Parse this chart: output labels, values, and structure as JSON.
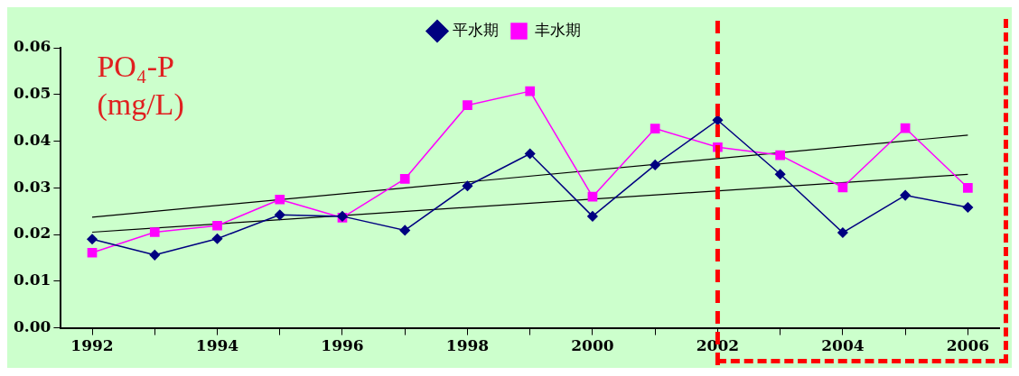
{
  "chart_data": {
    "type": "line",
    "ylabel": "PO₄-P (mg/L)",
    "categories": [
      "1992",
      null,
      "1994",
      null,
      "1996",
      null,
      "1998",
      null,
      "2000",
      null,
      "2002",
      null,
      "2004",
      null,
      "2006"
    ],
    "series": [
      {
        "name": "平水期",
        "color": "#000080",
        "marker": "diamond",
        "values": [
          0.019,
          0.0156,
          0.0191,
          0.0242,
          0.0239,
          0.0209,
          0.0304,
          0.0373,
          0.0239,
          0.0349,
          0.0445,
          0.0329,
          0.0204,
          0.0284,
          0.0258
        ]
      },
      {
        "name": "丰水期",
        "color": "#ff00ff",
        "marker": "square",
        "values": [
          0.0161,
          0.0205,
          0.0219,
          0.0275,
          0.0236,
          0.0319,
          0.0477,
          0.0507,
          0.0281,
          0.0427,
          0.0387,
          0.037,
          0.0301,
          0.0428,
          0.03
        ]
      },
      {
        "type": "line",
        "color": "#000000",
        "marker": "none",
        "values": [
          0.0237,
          null,
          null,
          null,
          null,
          null,
          null,
          null,
          null,
          null,
          null,
          null,
          null,
          null,
          0.0413
        ]
      },
      {
        "type": "line",
        "color": "#000000",
        "marker": "none",
        "values": [
          0.0205,
          null,
          null,
          null,
          null,
          null,
          null,
          null,
          null,
          null,
          null,
          null,
          null,
          null,
          0.0329
        ]
      }
    ],
    "ylim": [
      0,
      0.06
    ],
    "yticks": [
      {
        "value": 0,
        "label": "0.00"
      },
      0.01,
      0.02,
      0.03,
      0.04,
      0.05,
      0.06
    ],
    "ref_lines": [
      {
        "axis": "x",
        "value": "2002",
        "color": "#ff0000",
        "line_style": "dashed"
      }
    ],
    "grid": false,
    "legend": "top"
  }
}
